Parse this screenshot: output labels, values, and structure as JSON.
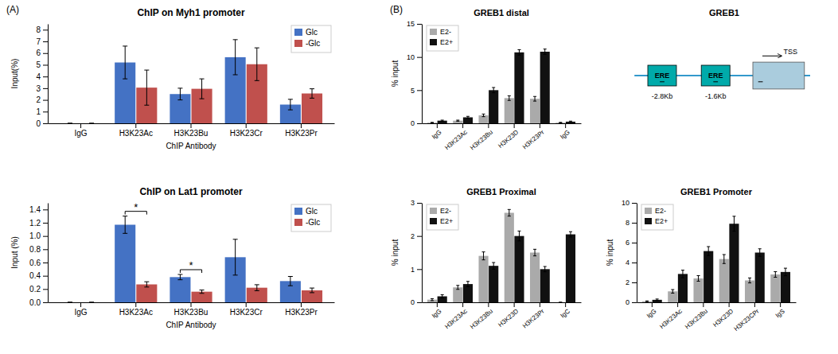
{
  "chart_data": [
    {
      "type": "bar",
      "title": "ChIP on Myh1 promoter",
      "x_label": "ChIP Antibody",
      "y_label": "Input(%)",
      "categories": [
        "IgG",
        "H3K23Ac",
        "H3K23Bu",
        "H3K23Cr",
        "H3K23Pr"
      ],
      "series": [
        {
          "name": "Glc",
          "color": "#4472C4",
          "values": [
            0.0,
            5.2,
            2.5,
            5.65,
            1.6
          ],
          "errors": [
            0.0,
            1.4,
            0.5,
            1.5,
            0.45
          ]
        },
        {
          "name": "-Glc",
          "color": "#C0504D",
          "values": [
            0.0,
            3.05,
            2.95,
            5.05,
            2.55
          ],
          "errors": [
            0.0,
            1.5,
            0.85,
            1.4,
            0.4
          ]
        }
      ],
      "ylim": [
        0,
        8.5
      ],
      "yticks": [
        0,
        1,
        2,
        3,
        4,
        5,
        6,
        7,
        8
      ],
      "grid": false,
      "legend": "upper right",
      "annotations": [
        {
          "text": "(A)"
        }
      ]
    },
    {
      "type": "bar",
      "title": "ChIP on Lat1 promoter",
      "x_label": "ChIP Antibody",
      "y_label": "Input (%)",
      "categories": [
        "IgG",
        "H3K23Ac",
        "H3K23Bu",
        "H3K23Cr",
        "H3K23Pr"
      ],
      "series": [
        {
          "name": "Glc",
          "color": "#4472C4",
          "values": [
            0.0,
            1.17,
            0.38,
            0.68,
            0.32
          ],
          "errors": [
            0.0,
            0.13,
            0.04,
            0.27,
            0.07
          ]
        },
        {
          "name": "-Glc",
          "color": "#C0504D",
          "values": [
            0.0,
            0.27,
            0.16,
            0.22,
            0.18
          ],
          "errors": [
            0.0,
            0.04,
            0.025,
            0.045,
            0.035
          ]
        }
      ],
      "ylim": [
        0,
        1.5
      ],
      "yticks": [
        {
          "value": 0,
          "label": "0.0"
        },
        0.2,
        0.4,
        0.6,
        0.8,
        {
          "value": 1,
          "label": "1.0"
        },
        1.2,
        1.4
      ],
      "grid": false,
      "legend": "upper right",
      "annotations": [
        {
          "text": "*",
          "x": "H3K23Ac"
        },
        {
          "text": "*",
          "x": "H3K23Bu"
        }
      ]
    },
    {
      "type": "bar",
      "title": "GREB1 distal",
      "y_label": "% input",
      "categories": [
        "IgG",
        "H3K23Ac",
        "H3K23Bu",
        "H3K23D",
        "H3K23Pr",
        "IgG"
      ],
      "series": [
        {
          "name": "E2-",
          "color": "#AAAAAA",
          "values": [
            0.1,
            0.4,
            1.2,
            3.8,
            3.7,
            0.1
          ],
          "errors": [
            0.04,
            0.08,
            0.2,
            0.35,
            0.35,
            0.04
          ]
        },
        {
          "name": "E2+",
          "color": "#111111",
          "values": [
            0.4,
            0.9,
            5.0,
            10.7,
            10.8,
            0.25
          ],
          "errors": [
            0.08,
            0.15,
            0.4,
            0.4,
            0.4,
            0.08
          ]
        }
      ],
      "ylim": [
        0,
        15
      ],
      "yticks": [
        0,
        5,
        10,
        15
      ],
      "grid": false,
      "legend": "upper left",
      "annotations": [
        {
          "text": "(B)"
        }
      ]
    },
    {
      "type": "diagram",
      "title": "GREB1",
      "annotations": [
        {
          "text": "ERE"
        },
        {
          "text": "ERE"
        },
        {
          "text": "TSS"
        },
        {
          "text": "-2.8Kb"
        },
        {
          "text": "-1.6Kb"
        }
      ]
    },
    {
      "type": "bar",
      "title": "GREB1 Proximal",
      "y_label": "% input",
      "categories": [
        "IgG",
        "H3K23Ac",
        "H3K23Bu",
        "H3K23D",
        "H3K23Pr",
        "IgC"
      ],
      "series": [
        {
          "name": "E2-",
          "color": "#AAAAAA",
          "values": [
            0.08,
            0.45,
            1.4,
            2.7,
            1.5,
            0.0
          ],
          "errors": [
            0.03,
            0.06,
            0.12,
            0.1,
            0.1,
            0.0
          ]
        },
        {
          "name": "E2+",
          "color": "#111111",
          "values": [
            0.18,
            0.55,
            1.1,
            2.0,
            1.0,
            2.05
          ],
          "errors": [
            0.05,
            0.08,
            0.1,
            0.15,
            0.08,
            0.08
          ]
        }
      ],
      "ylim": [
        0,
        3
      ],
      "yticks": [
        0,
        1,
        2,
        3
      ],
      "grid": false,
      "legend": "upper left"
    },
    {
      "type": "bar",
      "title": "GREB1 Promoter",
      "y_label": "% input",
      "categories": [
        "IgG",
        "H3K23Ac",
        "H3K23Bu",
        "H3K23D",
        "H3K23CPr",
        "IgS"
      ],
      "series": [
        {
          "name": "E2-",
          "color": "#AAAAAA",
          "values": [
            0.1,
            1.1,
            2.4,
            4.35,
            2.2,
            2.8
          ],
          "errors": [
            0.04,
            0.18,
            0.28,
            0.45,
            0.25,
            0.28
          ]
        },
        {
          "name": "E2+",
          "color": "#111111",
          "values": [
            0.25,
            2.85,
            5.15,
            7.9,
            5.0,
            3.05
          ],
          "errors": [
            0.08,
            0.38,
            0.45,
            0.75,
            0.38,
            0.38
          ]
        }
      ],
      "ylim": [
        0,
        10
      ],
      "yticks": [
        0,
        2,
        4,
        6,
        8,
        10
      ],
      "grid": false,
      "legend": "upper left"
    }
  ]
}
